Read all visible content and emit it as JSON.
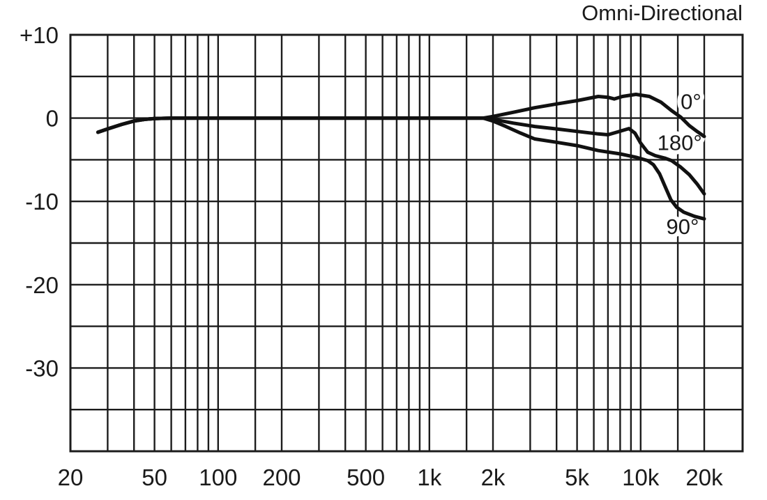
{
  "chart_data": {
    "type": "line",
    "title": "Omni-Directional",
    "x_axis": {
      "scale": "log",
      "unit": "Hz",
      "min": 20,
      "max": 20000,
      "gridlines": [
        20,
        30,
        40,
        50,
        60,
        70,
        80,
        90,
        100,
        150,
        200,
        300,
        400,
        500,
        600,
        700,
        800,
        900,
        1000,
        1500,
        2000,
        3000,
        4000,
        5000,
        6000,
        7000,
        8000,
        9000,
        10000,
        15000,
        20000
      ],
      "ticks": [
        {
          "value": 20,
          "label": "20"
        },
        {
          "value": 50,
          "label": "50"
        },
        {
          "value": 100,
          "label": "100"
        },
        {
          "value": 200,
          "label": "200"
        },
        {
          "value": 500,
          "label": "500"
        },
        {
          "value": 1000,
          "label": "1k"
        },
        {
          "value": 2000,
          "label": "2k"
        },
        {
          "value": 5000,
          "label": "5k"
        },
        {
          "value": 10000,
          "label": "10k"
        },
        {
          "value": 20000,
          "label": "20k"
        }
      ]
    },
    "y_axis": {
      "unit": "dB",
      "min": -40,
      "max": 10,
      "grid_step": 5,
      "ticks": [
        {
          "value": 10,
          "label": "+10"
        },
        {
          "value": 0,
          "label": "0"
        },
        {
          "value": -10,
          "label": "-10"
        },
        {
          "value": -20,
          "label": "-20"
        },
        {
          "value": -30,
          "label": "-30"
        }
      ]
    },
    "series": [
      {
        "id": "0deg",
        "name": "0°",
        "label_pos": {
          "f": 17300,
          "db": 2.0
        },
        "points": [
          [
            27,
            -1.7
          ],
          [
            30,
            -1.3
          ],
          [
            35,
            -0.75
          ],
          [
            40,
            -0.35
          ],
          [
            45,
            -0.15
          ],
          [
            50,
            -0.05
          ],
          [
            60,
            0
          ],
          [
            80,
            0
          ],
          [
            120,
            0
          ],
          [
            250,
            0
          ],
          [
            500,
            0
          ],
          [
            1000,
            0
          ],
          [
            1500,
            0
          ],
          [
            1800,
            0
          ],
          [
            2000,
            0.2
          ],
          [
            2500,
            0.7
          ],
          [
            3150,
            1.25
          ],
          [
            4000,
            1.7
          ],
          [
            5000,
            2.1
          ],
          [
            6300,
            2.6
          ],
          [
            7000,
            2.5
          ],
          [
            7500,
            2.3
          ],
          [
            8200,
            2.6
          ],
          [
            9500,
            2.85
          ],
          [
            11000,
            2.6
          ],
          [
            12500,
            1.9
          ],
          [
            14000,
            0.9
          ],
          [
            15500,
            0.1
          ],
          [
            17000,
            -0.9
          ],
          [
            18500,
            -1.6
          ],
          [
            20000,
            -2.2
          ]
        ]
      },
      {
        "id": "180deg",
        "name": "180°",
        "label_pos": {
          "f": 15300,
          "db": -2.9
        },
        "points": [
          [
            27,
            -1.7
          ],
          [
            30,
            -1.3
          ],
          [
            35,
            -0.75
          ],
          [
            40,
            -0.35
          ],
          [
            45,
            -0.15
          ],
          [
            50,
            -0.05
          ],
          [
            60,
            0
          ],
          [
            80,
            0
          ],
          [
            120,
            0
          ],
          [
            250,
            0
          ],
          [
            500,
            0
          ],
          [
            1000,
            0
          ],
          [
            1500,
            0
          ],
          [
            1800,
            0
          ],
          [
            2000,
            -0.15
          ],
          [
            2500,
            -0.6
          ],
          [
            3150,
            -1.0
          ],
          [
            4000,
            -1.3
          ],
          [
            5000,
            -1.6
          ],
          [
            6300,
            -1.9
          ],
          [
            7000,
            -2.0
          ],
          [
            7700,
            -1.7
          ],
          [
            8800,
            -1.25
          ],
          [
            9400,
            -1.8
          ],
          [
            10000,
            -3.0
          ],
          [
            10800,
            -4.1
          ],
          [
            11700,
            -4.5
          ],
          [
            13000,
            -4.8
          ],
          [
            14000,
            -5.1
          ],
          [
            15500,
            -5.9
          ],
          [
            17000,
            -6.8
          ],
          [
            18500,
            -7.9
          ],
          [
            20000,
            -9.1
          ]
        ]
      },
      {
        "id": "90deg",
        "name": "90°",
        "label_pos": {
          "f": 15800,
          "db": -13.0
        },
        "points": [
          [
            27,
            -1.7
          ],
          [
            30,
            -1.3
          ],
          [
            35,
            -0.75
          ],
          [
            40,
            -0.35
          ],
          [
            45,
            -0.15
          ],
          [
            50,
            -0.05
          ],
          [
            60,
            0
          ],
          [
            80,
            0
          ],
          [
            120,
            0
          ],
          [
            250,
            0
          ],
          [
            500,
            0
          ],
          [
            1000,
            0
          ],
          [
            1500,
            0
          ],
          [
            1800,
            0
          ],
          [
            2000,
            -0.35
          ],
          [
            2300,
            -1.0
          ],
          [
            2700,
            -1.8
          ],
          [
            3150,
            -2.5
          ],
          [
            4000,
            -2.9
          ],
          [
            5000,
            -3.3
          ],
          [
            6300,
            -3.9
          ],
          [
            8000,
            -4.3
          ],
          [
            9500,
            -4.7
          ],
          [
            10800,
            -5.1
          ],
          [
            11500,
            -5.6
          ],
          [
            12300,
            -6.7
          ],
          [
            13100,
            -8.3
          ],
          [
            13900,
            -9.8
          ],
          [
            14800,
            -10.7
          ],
          [
            16000,
            -11.3
          ],
          [
            18000,
            -11.8
          ],
          [
            20000,
            -12.1
          ]
        ]
      }
    ],
    "layout_hints": {
      "grid": "on",
      "legend": "inline-labels-right"
    },
    "colors": {
      "line": "#111111",
      "grid": "#1c1c1c",
      "text": "#1a1a1a",
      "background": "#ffffff"
    }
  }
}
